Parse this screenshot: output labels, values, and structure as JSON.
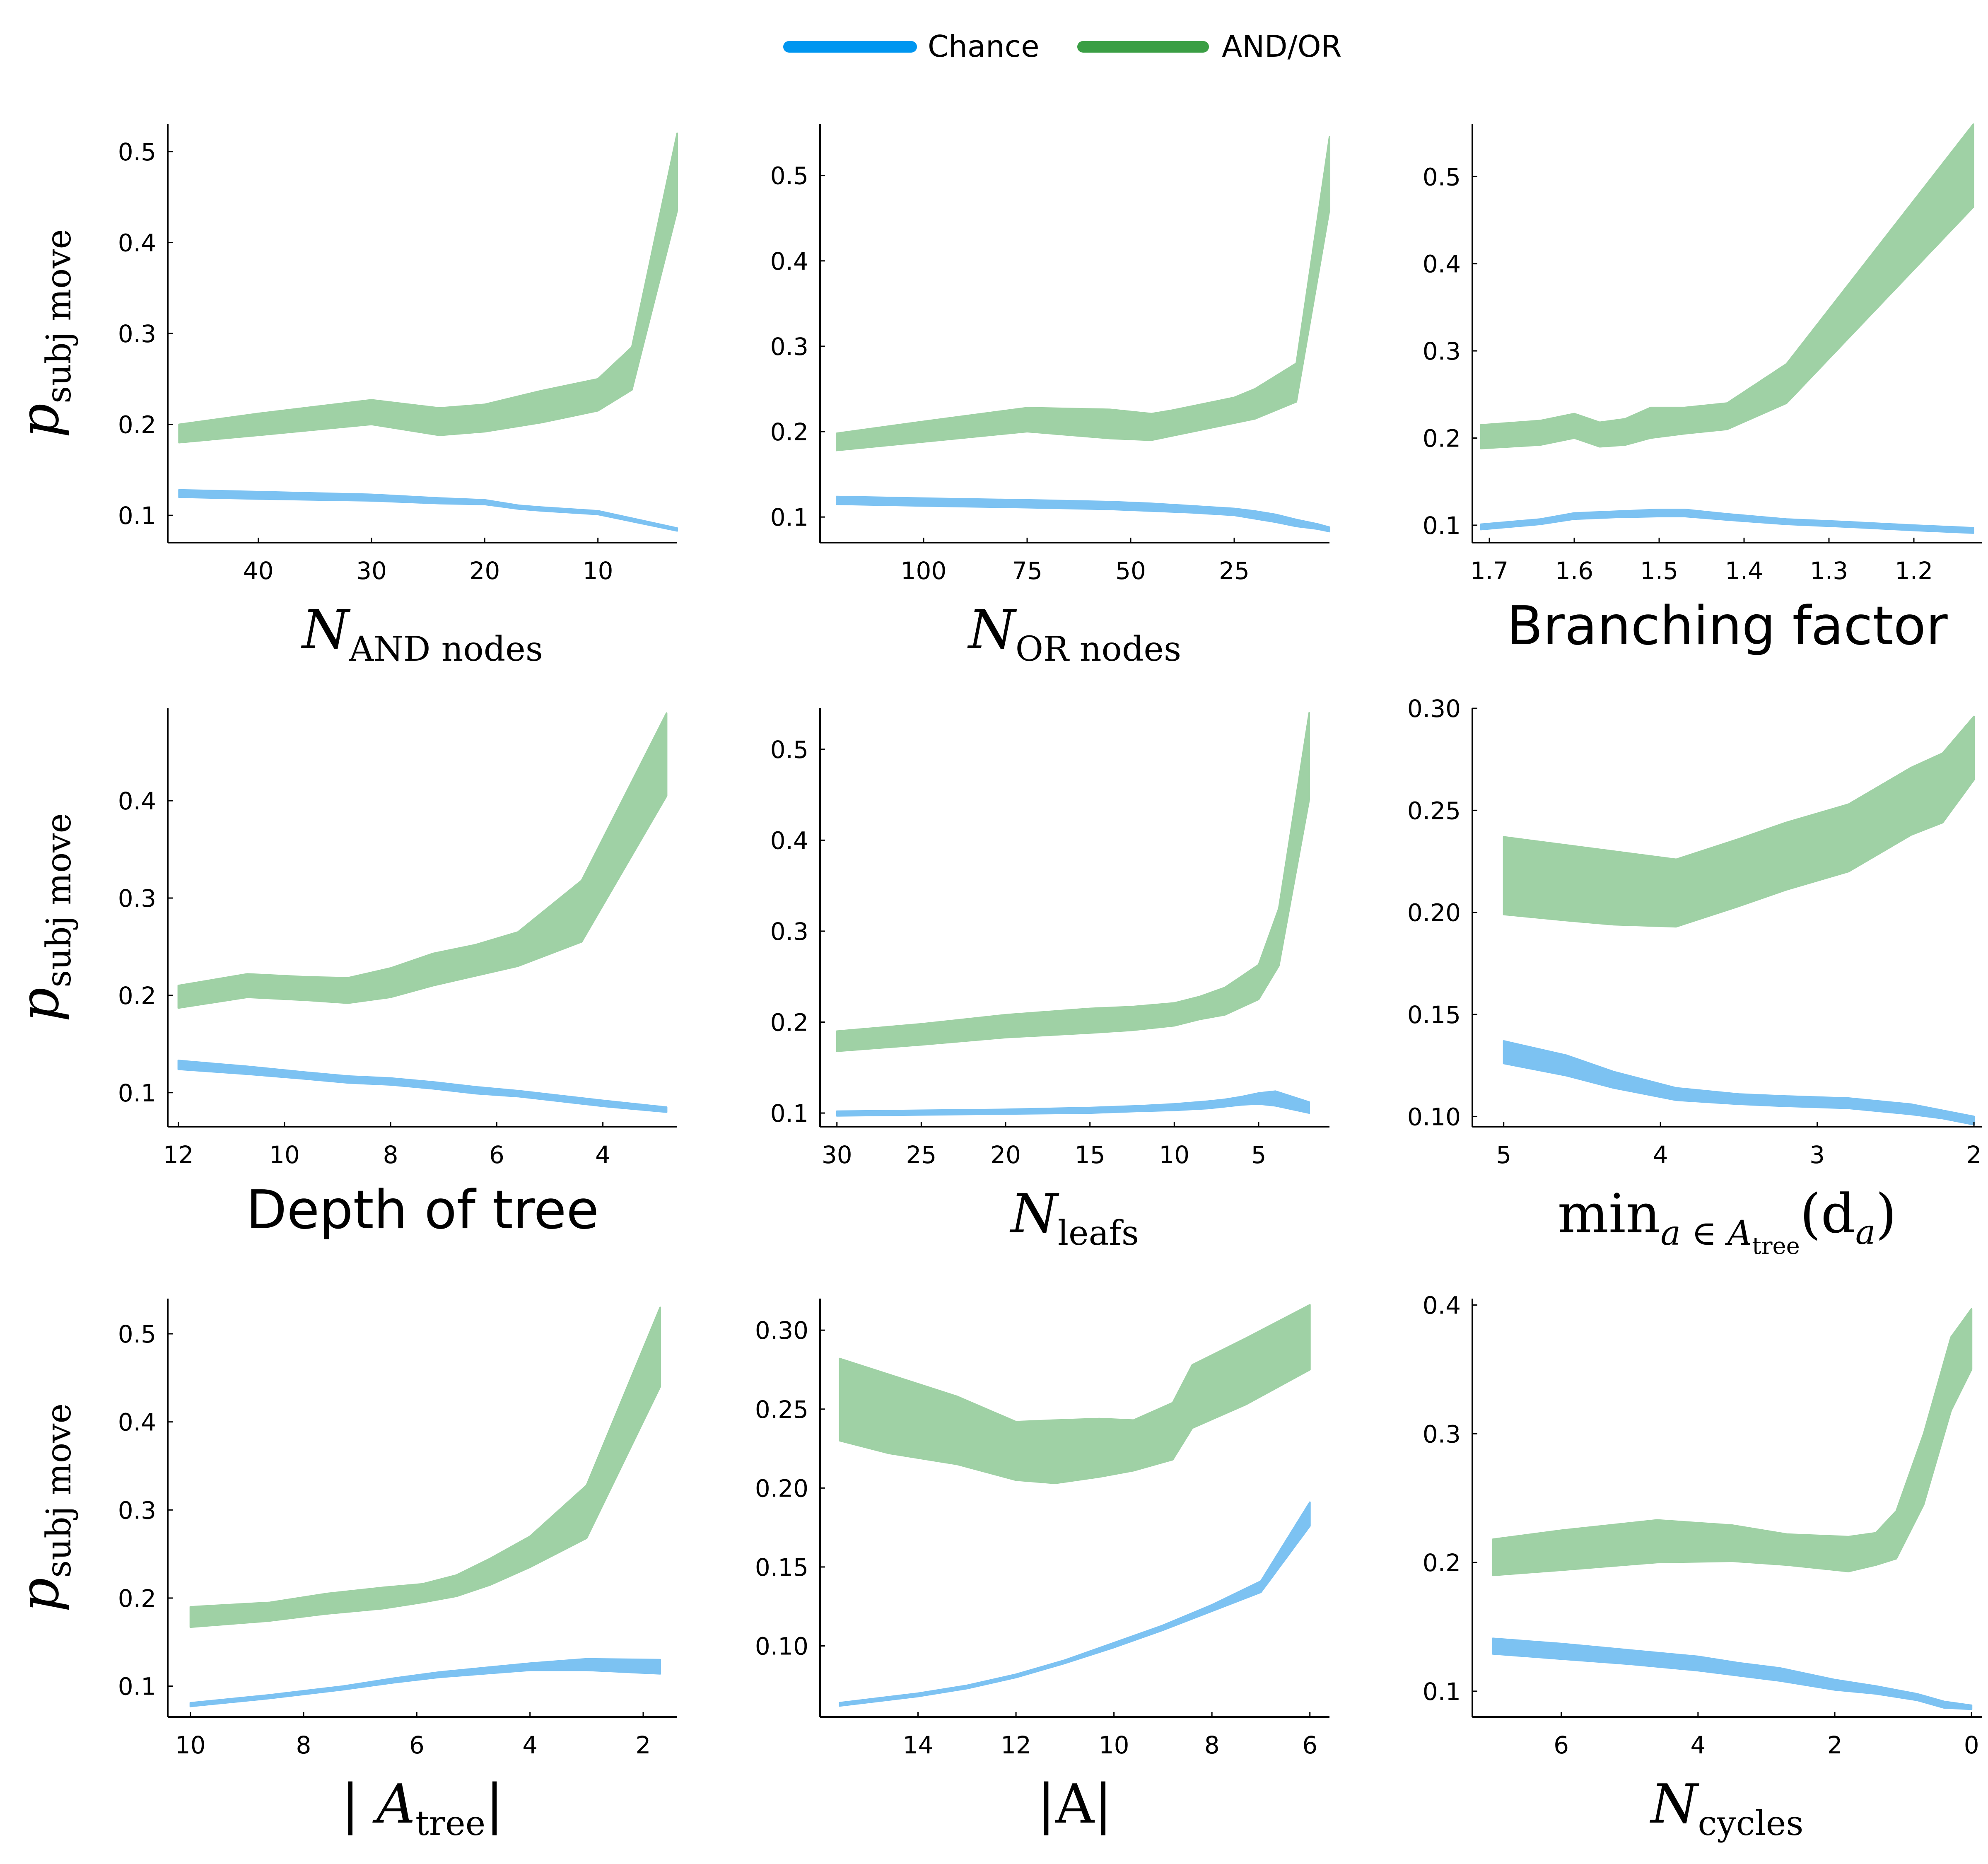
{
  "legend": {
    "placement": "top-center",
    "entries": [
      {
        "label": "Chance",
        "color": "#0096f0"
      },
      {
        "label": "AND/OR",
        "color": "#3a9e44"
      }
    ]
  },
  "colors": {
    "chance_band": "#7cc2f2",
    "andor_band": "#9fd1a5",
    "axis": "#000000"
  },
  "chart_data": [
    {
      "type": "area",
      "id": "and-nodes",
      "xlabel": "N",
      "xlabel_sub": "AND nodes",
      "ylabel": "p",
      "ylabel_sub": "subj move",
      "xlim": [
        48,
        3
      ],
      "ylim": [
        0.07,
        0.53
      ],
      "xticks": [
        40,
        30,
        20,
        10
      ],
      "yticks": [
        0.1,
        0.2,
        0.3,
        0.4,
        0.5
      ],
      "grid": false,
      "series": [
        {
          "name": "Chance",
          "x": [
            47,
            40,
            30,
            24,
            20,
            17,
            15,
            10,
            3
          ],
          "lower": [
            0.12,
            0.118,
            0.116,
            0.113,
            0.112,
            0.107,
            0.105,
            0.101,
            0.083
          ],
          "upper": [
            0.128,
            0.126,
            0.123,
            0.119,
            0.117,
            0.111,
            0.109,
            0.105,
            0.086
          ]
        },
        {
          "name": "AND/OR",
          "x": [
            47,
            40,
            30,
            24,
            20,
            15,
            10,
            7,
            3
          ],
          "lower": [
            0.18,
            0.188,
            0.2,
            0.188,
            0.192,
            0.202,
            0.215,
            0.238,
            0.435
          ],
          "upper": [
            0.2,
            0.212,
            0.227,
            0.218,
            0.222,
            0.237,
            0.25,
            0.285,
            0.52
          ]
        }
      ]
    },
    {
      "type": "area",
      "id": "or-nodes",
      "xlabel": "N",
      "xlabel_sub": "OR nodes",
      "ylabel": "",
      "ylabel_sub": "",
      "xlim": [
        125,
        2
      ],
      "ylim": [
        0.07,
        0.56
      ],
      "xticks": [
        100,
        75,
        50,
        25
      ],
      "yticks": [
        0.1,
        0.2,
        0.3,
        0.4,
        0.5
      ],
      "grid": false,
      "series": [
        {
          "name": "Chance",
          "x": [
            121,
            100,
            75,
            55,
            45,
            35,
            25,
            20,
            15,
            10,
            5,
            2
          ],
          "lower": [
            0.115,
            0.113,
            0.111,
            0.109,
            0.107,
            0.105,
            0.102,
            0.098,
            0.094,
            0.089,
            0.086,
            0.083
          ],
          "upper": [
            0.124,
            0.122,
            0.12,
            0.118,
            0.116,
            0.113,
            0.11,
            0.107,
            0.103,
            0.097,
            0.092,
            0.088
          ]
        },
        {
          "name": "AND/OR",
          "x": [
            121,
            100,
            75,
            55,
            45,
            40,
            35,
            30,
            25,
            20,
            10,
            2
          ],
          "lower": [
            0.178,
            0.188,
            0.2,
            0.192,
            0.19,
            0.195,
            0.2,
            0.205,
            0.21,
            0.215,
            0.235,
            0.46
          ],
          "upper": [
            0.198,
            0.212,
            0.228,
            0.226,
            0.221,
            0.225,
            0.23,
            0.235,
            0.24,
            0.25,
            0.28,
            0.545
          ]
        }
      ]
    },
    {
      "type": "area",
      "id": "branching",
      "xlabel": "Branching factor",
      "xlabel_sub": "",
      "ylabel": "",
      "ylabel_sub": "",
      "xlim": [
        1.72,
        1.12
      ],
      "ylim": [
        0.08,
        0.56
      ],
      "xticks": [
        1.7,
        1.6,
        1.5,
        1.4,
        1.3,
        1.2
      ],
      "yticks": [
        0.1,
        0.2,
        0.3,
        0.4,
        0.5
      ],
      "grid": false,
      "series": [
        {
          "name": "Chance",
          "x": [
            1.71,
            1.64,
            1.6,
            1.55,
            1.5,
            1.47,
            1.42,
            1.35,
            1.28,
            1.2,
            1.13
          ],
          "lower": [
            0.095,
            0.101,
            0.107,
            0.109,
            0.11,
            0.11,
            0.106,
            0.101,
            0.098,
            0.094,
            0.091
          ],
          "upper": [
            0.101,
            0.107,
            0.114,
            0.116,
            0.118,
            0.118,
            0.113,
            0.107,
            0.104,
            0.1,
            0.097
          ]
        },
        {
          "name": "AND/OR",
          "x": [
            1.71,
            1.64,
            1.6,
            1.57,
            1.54,
            1.51,
            1.47,
            1.42,
            1.35,
            1.13
          ],
          "lower": [
            0.188,
            0.192,
            0.2,
            0.19,
            0.192,
            0.2,
            0.205,
            0.21,
            0.24,
            0.465
          ],
          "upper": [
            0.215,
            0.22,
            0.228,
            0.218,
            0.222,
            0.235,
            0.235,
            0.24,
            0.285,
            0.56
          ]
        }
      ]
    },
    {
      "type": "area",
      "id": "depth",
      "xlabel": "Depth of tree",
      "xlabel_sub": "",
      "ylabel": "p",
      "ylabel_sub": "subj move",
      "xlim": [
        12.2,
        2.6
      ],
      "ylim": [
        0.065,
        0.495
      ],
      "xticks": [
        12,
        10,
        8,
        6,
        4
      ],
      "yticks": [
        0.1,
        0.2,
        0.3,
        0.4
      ],
      "grid": false,
      "series": [
        {
          "name": "Chance",
          "x": [
            12,
            10.7,
            9.6,
            8.8,
            8,
            7.2,
            6.4,
            5.6,
            4.8,
            4,
            2.8
          ],
          "lower": [
            0.124,
            0.119,
            0.114,
            0.11,
            0.108,
            0.104,
            0.099,
            0.096,
            0.091,
            0.086,
            0.08
          ],
          "upper": [
            0.133,
            0.127,
            0.121,
            0.117,
            0.115,
            0.111,
            0.106,
            0.102,
            0.097,
            0.092,
            0.085
          ]
        },
        {
          "name": "AND/OR",
          "x": [
            12,
            10.7,
            9.6,
            8.8,
            8,
            7.2,
            6.4,
            5.6,
            4.4,
            2.8
          ],
          "lower": [
            0.187,
            0.198,
            0.195,
            0.192,
            0.198,
            0.21,
            0.22,
            0.23,
            0.255,
            0.405
          ],
          "upper": [
            0.21,
            0.222,
            0.219,
            0.218,
            0.228,
            0.243,
            0.252,
            0.265,
            0.318,
            0.49
          ]
        }
      ]
    },
    {
      "type": "area",
      "id": "leafs",
      "xlabel": "N",
      "xlabel_sub": "leafs",
      "ylabel": "",
      "ylabel_sub": "",
      "xlim": [
        31,
        0.8
      ],
      "ylim": [
        0.085,
        0.545
      ],
      "xticks": [
        30,
        25,
        20,
        15,
        10,
        5
      ],
      "yticks": [
        0.1,
        0.2,
        0.3,
        0.4,
        0.5
      ],
      "grid": false,
      "series": [
        {
          "name": "Chance",
          "x": [
            30,
            25,
            20,
            15,
            12,
            10,
            8,
            7,
            6,
            5,
            4,
            3,
            2
          ],
          "lower": [
            0.097,
            0.098,
            0.099,
            0.1,
            0.102,
            0.103,
            0.105,
            0.107,
            0.109,
            0.11,
            0.108,
            0.104,
            0.1
          ],
          "upper": [
            0.102,
            0.103,
            0.104,
            0.106,
            0.108,
            0.11,
            0.113,
            0.115,
            0.118,
            0.122,
            0.124,
            0.118,
            0.112
          ]
        },
        {
          "name": "AND/OR",
          "x": [
            30,
            25,
            20,
            15,
            12.5,
            10,
            8.5,
            7,
            5,
            3.8,
            2
          ],
          "lower": [
            0.168,
            0.175,
            0.183,
            0.188,
            0.191,
            0.196,
            0.203,
            0.208,
            0.225,
            0.262,
            0.445
          ],
          "upper": [
            0.19,
            0.198,
            0.208,
            0.215,
            0.217,
            0.221,
            0.228,
            0.238,
            0.263,
            0.325,
            0.54
          ]
        }
      ]
    },
    {
      "type": "area",
      "id": "min-depth",
      "xlabel": "min",
      "xlabel_sub": "a ∈ A",
      "xlabel_subsub": "tree",
      "xlabel_tail": "(d",
      "xlabel_tail_sub": "a",
      "xlabel_end": ")",
      "ylabel": "",
      "ylabel_sub": "",
      "xlim": [
        5.2,
        1.95
      ],
      "ylim": [
        0.095,
        0.3
      ],
      "xticks": [
        5,
        4,
        3,
        2
      ],
      "yticks": [
        0.1,
        0.15,
        0.2,
        0.25,
        0.3
      ],
      "ytick_decimals": 2,
      "grid": false,
      "series": [
        {
          "name": "Chance",
          "x": [
            5,
            4.6,
            4.3,
            3.9,
            3.5,
            3.2,
            2.8,
            2.4,
            2.2,
            2.0
          ],
          "lower": [
            0.126,
            0.12,
            0.114,
            0.108,
            0.106,
            0.105,
            0.104,
            0.101,
            0.099,
            0.096
          ],
          "upper": [
            0.137,
            0.13,
            0.122,
            0.114,
            0.111,
            0.11,
            0.109,
            0.106,
            0.103,
            0.1
          ]
        },
        {
          "name": "AND/OR",
          "x": [
            5,
            4.6,
            4.3,
            3.9,
            3.5,
            3.2,
            2.8,
            2.4,
            2.2,
            2.0
          ],
          "lower": [
            0.199,
            0.196,
            0.194,
            0.193,
            0.203,
            0.211,
            0.22,
            0.238,
            0.244,
            0.265
          ],
          "upper": [
            0.237,
            0.233,
            0.23,
            0.226,
            0.236,
            0.244,
            0.253,
            0.271,
            0.278,
            0.296
          ]
        }
      ]
    },
    {
      "type": "area",
      "id": "a-tree",
      "xlabel": "| A",
      "xlabel_sub": "tree",
      "xlabel_tail": "|",
      "ylabel": "p",
      "ylabel_sub": "subj move",
      "xlim": [
        10.4,
        1.4
      ],
      "ylim": [
        0.065,
        0.54
      ],
      "xticks": [
        10,
        8,
        6,
        4,
        2
      ],
      "yticks": [
        0.1,
        0.2,
        0.3,
        0.4,
        0.5
      ],
      "grid": false,
      "series": [
        {
          "name": "Chance",
          "x": [
            10,
            8.6,
            7.3,
            6.4,
            5.6,
            4.8,
            4,
            3,
            1.7
          ],
          "lower": [
            0.077,
            0.086,
            0.096,
            0.104,
            0.11,
            0.114,
            0.118,
            0.118,
            0.114
          ],
          "upper": [
            0.081,
            0.09,
            0.1,
            0.109,
            0.116,
            0.121,
            0.126,
            0.131,
            0.13
          ]
        },
        {
          "name": "AND/OR",
          "x": [
            10,
            8.6,
            7.6,
            6.6,
            5.9,
            5.3,
            4.7,
            4,
            3,
            1.7
          ],
          "lower": [
            0.167,
            0.174,
            0.182,
            0.188,
            0.195,
            0.202,
            0.215,
            0.235,
            0.268,
            0.44
          ],
          "upper": [
            0.19,
            0.195,
            0.205,
            0.212,
            0.216,
            0.226,
            0.245,
            0.27,
            0.328,
            0.53
          ]
        }
      ]
    },
    {
      "type": "area",
      "id": "a-size",
      "xlabel": "|A|",
      "xlabel_sub": "",
      "ylabel": "",
      "ylabel_sub": "",
      "xlim": [
        16,
        5.6
      ],
      "ylim": [
        0.055,
        0.32
      ],
      "xticks": [
        14,
        12,
        10,
        8,
        6
      ],
      "yticks": [
        0.1,
        0.15,
        0.2,
        0.25,
        0.3
      ],
      "ytick_decimals": 2,
      "grid": false,
      "series": [
        {
          "name": "Chance",
          "x": [
            15.6,
            14,
            13,
            12,
            11,
            10,
            9,
            8,
            7,
            6
          ],
          "lower": [
            0.062,
            0.068,
            0.073,
            0.08,
            0.089,
            0.099,
            0.11,
            0.122,
            0.134,
            0.176
          ],
          "upper": [
            0.064,
            0.07,
            0.075,
            0.082,
            0.091,
            0.102,
            0.113,
            0.126,
            0.141,
            0.191
          ]
        },
        {
          "name": "AND/OR",
          "x": [
            15.6,
            14.6,
            13.2,
            12,
            11.2,
            10.3,
            9.6,
            8.8,
            8.4,
            7.3,
            6
          ],
          "lower": [
            0.23,
            0.222,
            0.215,
            0.205,
            0.203,
            0.207,
            0.211,
            0.218,
            0.238,
            0.253,
            0.275
          ],
          "upper": [
            0.282,
            0.272,
            0.258,
            0.242,
            0.243,
            0.244,
            0.243,
            0.254,
            0.278,
            0.295,
            0.316
          ]
        }
      ]
    },
    {
      "type": "area",
      "id": "cycles",
      "xlabel": "N",
      "xlabel_sub": "cycles",
      "ylabel": "",
      "ylabel_sub": "",
      "xlim": [
        7.3,
        -0.15
      ],
      "ylim": [
        0.08,
        0.405
      ],
      "xticks": [
        6,
        4,
        2,
        0
      ],
      "yticks": [
        0.1,
        0.2,
        0.3,
        0.4
      ],
      "grid": false,
      "series": [
        {
          "name": "Chance",
          "x": [
            7,
            6,
            5,
            4,
            3.4,
            2.8,
            2,
            1.4,
            0.8,
            0.4,
            0
          ],
          "lower": [
            0.129,
            0.125,
            0.121,
            0.116,
            0.112,
            0.108,
            0.101,
            0.098,
            0.093,
            0.087,
            0.086
          ],
          "upper": [
            0.141,
            0.137,
            0.132,
            0.127,
            0.122,
            0.118,
            0.109,
            0.104,
            0.098,
            0.092,
            0.089
          ]
        },
        {
          "name": "AND/OR",
          "x": [
            7,
            6,
            4.6,
            3.5,
            2.7,
            1.8,
            1.4,
            1.1,
            0.7,
            0.3,
            0
          ],
          "lower": [
            0.19,
            0.194,
            0.2,
            0.201,
            0.198,
            0.193,
            0.198,
            0.203,
            0.245,
            0.318,
            0.35
          ],
          "upper": [
            0.218,
            0.225,
            0.233,
            0.229,
            0.222,
            0.22,
            0.223,
            0.24,
            0.3,
            0.375,
            0.397
          ]
        }
      ]
    }
  ]
}
